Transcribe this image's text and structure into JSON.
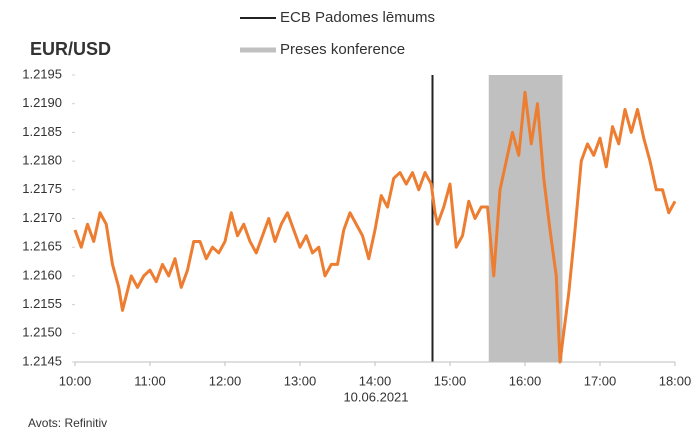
{
  "chart_data": {
    "type": "line",
    "title": "EUR/USD",
    "xlabel": "10.06.2021",
    "source": "Avots: Refinitiv",
    "color": "#ed7d31",
    "x": [
      "10:00",
      "10:05",
      "10:10",
      "10:15",
      "10:20",
      "10:25",
      "10:30",
      "10:35",
      "10:38",
      "10:45",
      "10:50",
      "10:55",
      "11:00",
      "11:05",
      "11:10",
      "11:15",
      "11:20",
      "11:25",
      "11:30",
      "11:35",
      "11:40",
      "11:45",
      "11:50",
      "11:55",
      "12:00",
      "12:05",
      "12:10",
      "12:15",
      "12:20",
      "12:25",
      "12:30",
      "12:35",
      "12:40",
      "12:45",
      "12:50",
      "12:55",
      "13:00",
      "13:05",
      "13:10",
      "13:15",
      "13:20",
      "13:25",
      "13:30",
      "13:35",
      "13:40",
      "13:45",
      "13:50",
      "13:55",
      "14:00",
      "14:05",
      "14:10",
      "14:15",
      "14:20",
      "14:25",
      "14:30",
      "14:35",
      "14:40",
      "14:45",
      "14:48",
      "14:50",
      "14:55",
      "15:00",
      "15:05",
      "15:10",
      "15:15",
      "15:20",
      "15:25",
      "15:30",
      "15:35",
      "15:40",
      "15:45",
      "15:50",
      "15:55",
      "16:00",
      "16:05",
      "16:10",
      "16:15",
      "16:20",
      "16:25",
      "16:28",
      "16:35",
      "16:40",
      "16:45",
      "16:50",
      "16:55",
      "17:00",
      "17:05",
      "17:10",
      "17:15",
      "17:20",
      "17:25",
      "17:30",
      "17:35",
      "17:40",
      "17:45",
      "17:50",
      "17:55",
      "18:00"
    ],
    "values": [
      1.2168,
      1.2165,
      1.2169,
      1.2166,
      1.2171,
      1.2169,
      1.2162,
      1.2158,
      1.2154,
      1.216,
      1.2158,
      1.216,
      1.2161,
      1.2159,
      1.2162,
      1.216,
      1.2163,
      1.2158,
      1.2161,
      1.2166,
      1.2166,
      1.2163,
      1.2165,
      1.2164,
      1.2166,
      1.2171,
      1.2167,
      1.2169,
      1.2166,
      1.2164,
      1.2167,
      1.217,
      1.2166,
      1.2169,
      1.2171,
      1.2168,
      1.2165,
      1.2167,
      1.2164,
      1.2165,
      1.216,
      1.2162,
      1.2162,
      1.2168,
      1.2171,
      1.2169,
      1.2167,
      1.2163,
      1.2168,
      1.2174,
      1.2172,
      1.2177,
      1.2178,
      1.2176,
      1.2178,
      1.2175,
      1.2178,
      1.2176,
      1.2171,
      1.2169,
      1.2172,
      1.2176,
      1.2165,
      1.2167,
      1.2173,
      1.217,
      1.2172,
      1.2172,
      1.216,
      1.2175,
      1.218,
      1.2185,
      1.2181,
      1.2192,
      1.2183,
      1.219,
      1.2177,
      1.2168,
      1.216,
      1.2145,
      1.2157,
      1.2168,
      1.218,
      1.2183,
      1.2181,
      1.2184,
      1.2179,
      1.2186,
      1.2183,
      1.2189,
      1.2185,
      1.2189,
      1.2184,
      1.218,
      1.2175,
      1.2175,
      1.2171,
      1.2173
    ],
    "xlim": [
      "10:00",
      "18:00"
    ],
    "xticks": [
      "10:00",
      "11:00",
      "12:00",
      "13:00",
      "14:00",
      "15:00",
      "16:00",
      "17:00",
      "18:00"
    ],
    "ylim": [
      1.2145,
      1.2195
    ],
    "yticks": [
      {
        "value": 1.2145,
        "label": "1.2145"
      },
      {
        "value": 1.215,
        "label": "1.2150"
      },
      {
        "value": 1.2155,
        "label": "1.2155"
      },
      {
        "value": 1.216,
        "label": "1.2160"
      },
      {
        "value": 1.2165,
        "label": "1.2165"
      },
      {
        "value": 1.217,
        "label": "1.2170"
      },
      {
        "value": 1.2175,
        "label": "1.2175"
      },
      {
        "value": 1.218,
        "label": "1.2180"
      },
      {
        "value": 1.2185,
        "label": "1.2185"
      },
      {
        "value": 1.219,
        "label": "1.2190"
      },
      {
        "value": 1.2195,
        "label": "1.2195"
      }
    ],
    "annotations": [
      {
        "type": "vline",
        "x": "14:46",
        "label": "ECB Padomes lēmums",
        "color": "#222222"
      },
      {
        "type": "span",
        "x": [
          "15:31",
          "16:30"
        ],
        "label": "Preses konference",
        "color": "#c0c0c0"
      }
    ]
  }
}
